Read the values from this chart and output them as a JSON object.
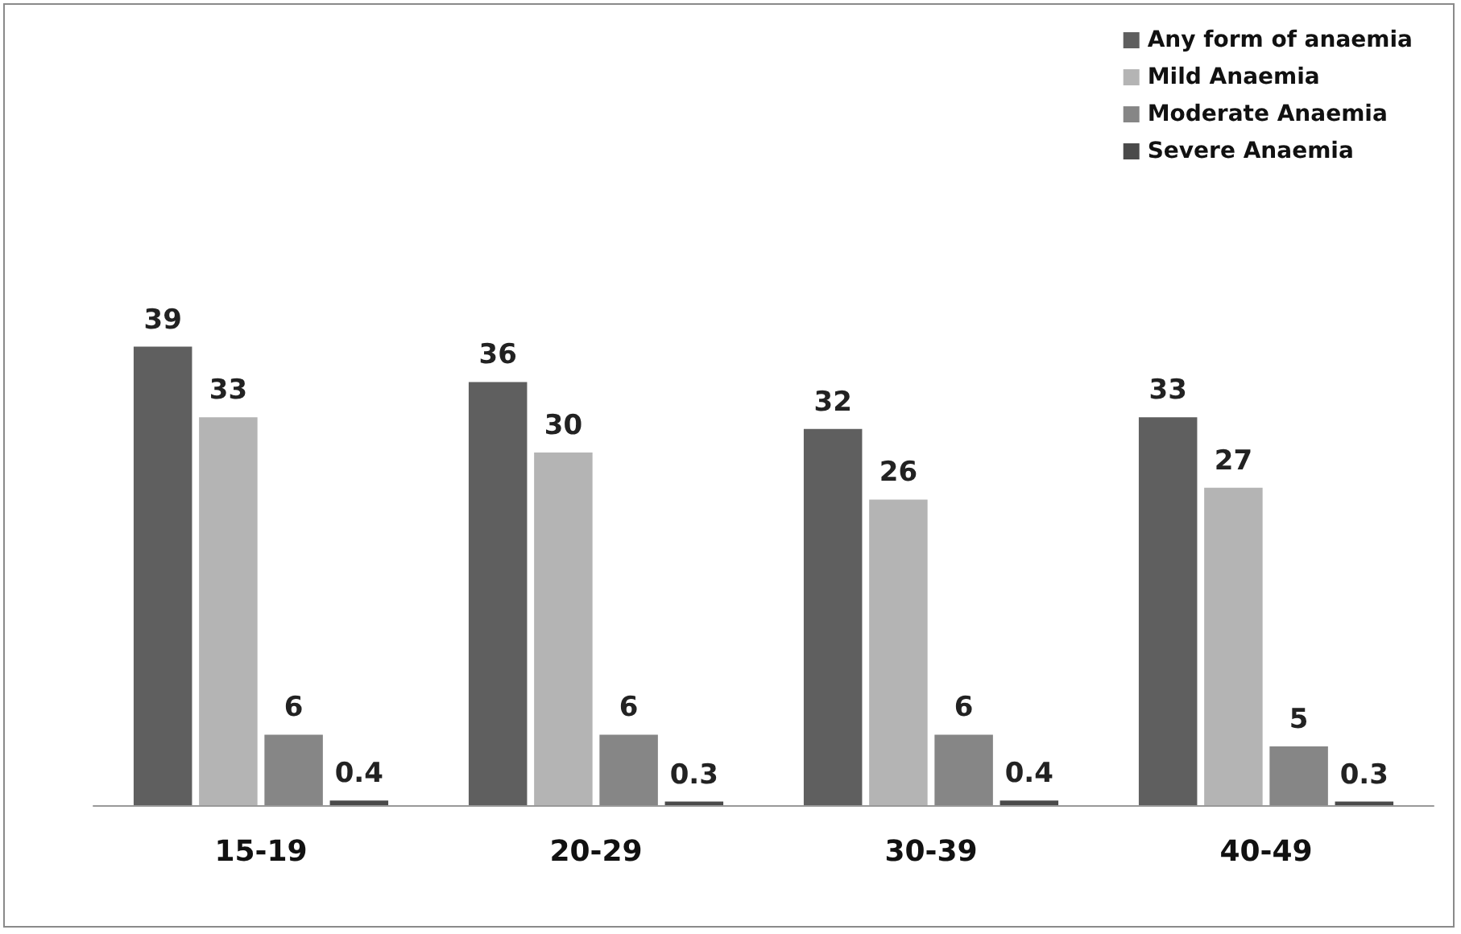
{
  "chart_data": {
    "type": "bar",
    "categories": [
      "15-19",
      "20-29",
      "30-39",
      "40-49"
    ],
    "series": [
      {
        "name": "Any form of anaemia",
        "color": "#5f5f5f",
        "values": [
          39,
          36,
          32,
          33
        ]
      },
      {
        "name": "Mild Anaemia",
        "color": "#b4b4b4",
        "values": [
          33,
          30,
          26,
          27
        ]
      },
      {
        "name": "Moderate Anaemia",
        "color": "#868686",
        "values": [
          6,
          6,
          6,
          5
        ]
      },
      {
        "name": "Severe Anaemia",
        "color": "#4a4a4a",
        "values": [
          0.4,
          0.3,
          0.4,
          0.3
        ]
      }
    ],
    "data_labels": true,
    "legend": "top right",
    "tick_labels": "x"
  }
}
